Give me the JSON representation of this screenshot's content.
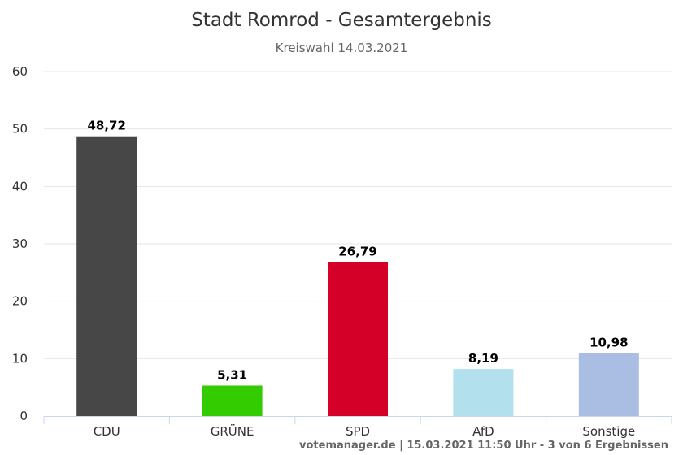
{
  "chart_data": {
    "type": "bar",
    "title": "Stadt Romrod - Gesamtergebnis",
    "subtitle": "Kreiswahl 14.03.2021",
    "categories": [
      "CDU",
      "GRÜNE",
      "SPD",
      "AfD",
      "Sonstige"
    ],
    "values": [
      48.72,
      5.31,
      26.79,
      8.19,
      10.98
    ],
    "data_labels": [
      "48,72",
      "5,31",
      "26,79",
      "8,19",
      "10,98"
    ],
    "colors": [
      "#474747",
      "#33cc00",
      "#d40027",
      "#b3e0ed",
      "#aabde3"
    ],
    "y_ticks": [
      "0",
      "10",
      "20",
      "30",
      "40",
      "50",
      "60"
    ],
    "ylim": [
      0,
      60
    ],
    "grid": true,
    "legend": "none",
    "credits": "votemanager.de | 15.03.2021 11:50 Uhr - 3 von 6 Ergebnissen"
  }
}
